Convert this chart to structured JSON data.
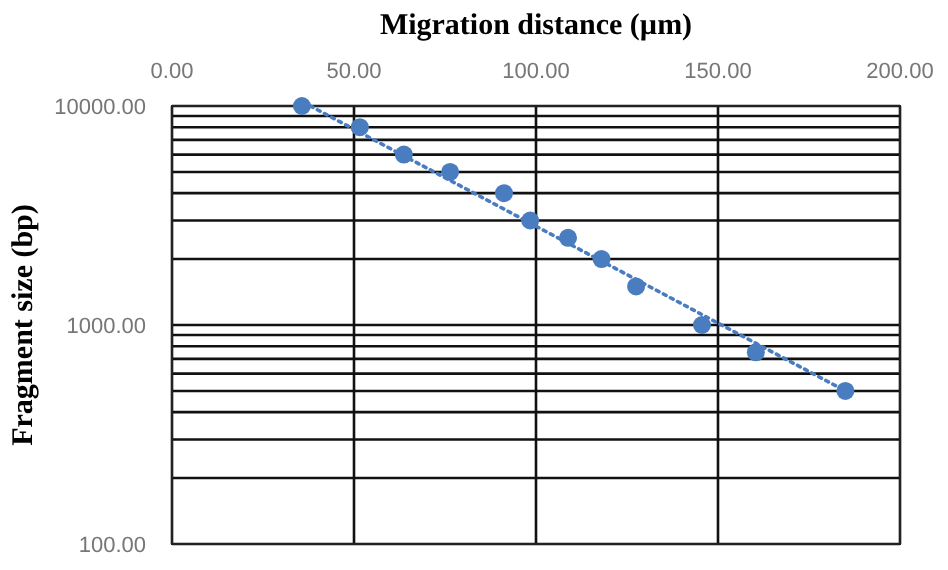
{
  "chart_data": {
    "type": "scatter",
    "xlabel": "Migration distance (µm)",
    "ylabel": "Fragment size (bp)",
    "log": "y",
    "grid": true,
    "marker": "circle",
    "xlim": [
      0,
      200
    ],
    "xticks": [
      {
        "value": 0,
        "label": "0.00"
      },
      {
        "value": 50,
        "label": "50.00"
      },
      {
        "value": 100,
        "label": "100.00"
      },
      {
        "value": 150,
        "label": "150.00"
      },
      {
        "value": 200,
        "label": "200.00"
      }
    ],
    "ylim": [
      100,
      10000
    ],
    "yticks": [
      {
        "value": 100,
        "label": "100.00"
      },
      {
        "value": 200,
        "label": null
      },
      {
        "value": 300,
        "label": null
      },
      {
        "value": 400,
        "label": null
      },
      {
        "value": 500,
        "label": null
      },
      {
        "value": 600,
        "label": null
      },
      {
        "value": 700,
        "label": null
      },
      {
        "value": 800,
        "label": null
      },
      {
        "value": 900,
        "label": null
      },
      {
        "value": 1000,
        "label": "1000.00"
      },
      {
        "value": 2000,
        "label": null
      },
      {
        "value": 3000,
        "label": null
      },
      {
        "value": 4000,
        "label": null
      },
      {
        "value": 5000,
        "label": null
      },
      {
        "value": 6000,
        "label": null
      },
      {
        "value": 7000,
        "label": null
      },
      {
        "value": 8000,
        "label": null
      },
      {
        "value": 9000,
        "label": null
      },
      {
        "value": 10000,
        "label": "10000.00"
      }
    ],
    "series": [
      {
        "color": "#4a7cc0",
        "x": [
          35.7,
          51.6,
          63.7,
          76.4,
          91.2,
          98.4,
          108.8,
          118,
          127.5,
          145.6,
          160.4,
          185
        ],
        "values": [
          10000,
          8000,
          6000,
          5000,
          4000,
          3000,
          2500,
          2000,
          1500,
          1000,
          750,
          500
        ]
      },
      {
        "type": "line",
        "color": "#4a7cc0",
        "line_style": "dotted",
        "marker": "none",
        "x": [
          38,
          185
        ],
        "values": [
          10000,
          500
        ]
      }
    ]
  }
}
